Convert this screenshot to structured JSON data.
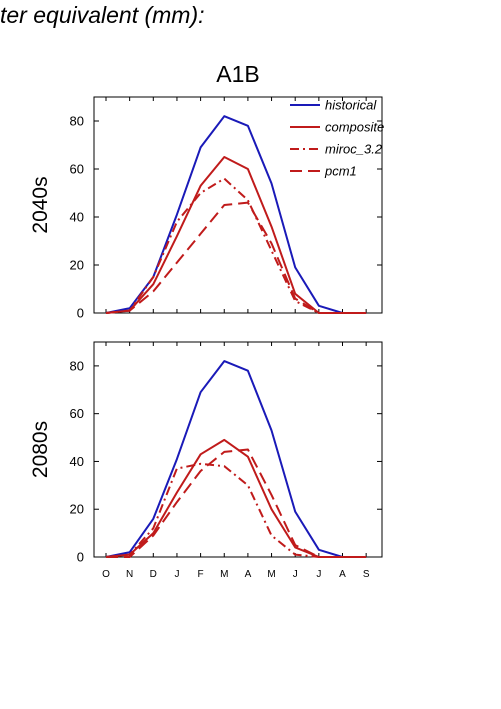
{
  "heading": "ter equivalent (mm):",
  "chart_data": {
    "type": "line",
    "scenario": "A1B",
    "months": [
      "O",
      "N",
      "D",
      "J",
      "F",
      "M",
      "A",
      "M",
      "J",
      "J",
      "A",
      "S"
    ],
    "ylim": [
      0,
      90
    ],
    "yticks": [
      0,
      20,
      40,
      60,
      80
    ],
    "grid": false,
    "legend_position": "top-right",
    "series_styles": {
      "historical": {
        "color": "#1a1ab8",
        "dash": "solid"
      },
      "composite": {
        "color": "#c01b1b",
        "dash": "solid"
      },
      "miroc_3.2": {
        "color": "#c01b1b",
        "dash": "dash-dot"
      },
      "pcm1": {
        "color": "#c01b1b",
        "dash": "long-dash"
      }
    },
    "panels": [
      {
        "ylabel": "2040s",
        "show_legend": true,
        "series": [
          {
            "name": "historical",
            "values": [
              0,
              2,
              15,
              41,
              69,
              82,
              78,
              54,
              19,
              3,
              0,
              0
            ]
          },
          {
            "name": "composite",
            "values": [
              0,
              1,
              12,
              32,
              53,
              65,
              60,
              36,
              8,
              0,
              0,
              0
            ]
          },
          {
            "name": "miroc_3.2",
            "values": [
              0,
              1,
              15,
              38,
              50,
              56,
              47,
              26,
              5,
              0,
              0,
              0
            ]
          },
          {
            "name": "pcm1",
            "values": [
              0,
              1,
              9,
              21,
              33,
              45,
              46,
              29,
              6,
              0,
              0,
              0
            ]
          }
        ]
      },
      {
        "ylabel": "2080s",
        "show_legend": false,
        "series": [
          {
            "name": "historical",
            "values": [
              0,
              2,
              16,
              41,
              69,
              82,
              78,
              53,
              19,
              3,
              0,
              0
            ]
          },
          {
            "name": "composite",
            "values": [
              0,
              1,
              10,
              27,
              43,
              49,
              42,
              20,
              4,
              0,
              0,
              0
            ]
          },
          {
            "name": "miroc_3.2",
            "values": [
              0,
              1,
              12,
              37,
              39,
              38,
              30,
              9,
              1,
              0,
              0,
              0
            ]
          },
          {
            "name": "pcm1",
            "values": [
              0,
              0,
              9,
              23,
              36,
              44,
              45,
              26,
              5,
              0,
              0,
              0
            ]
          }
        ]
      }
    ]
  }
}
